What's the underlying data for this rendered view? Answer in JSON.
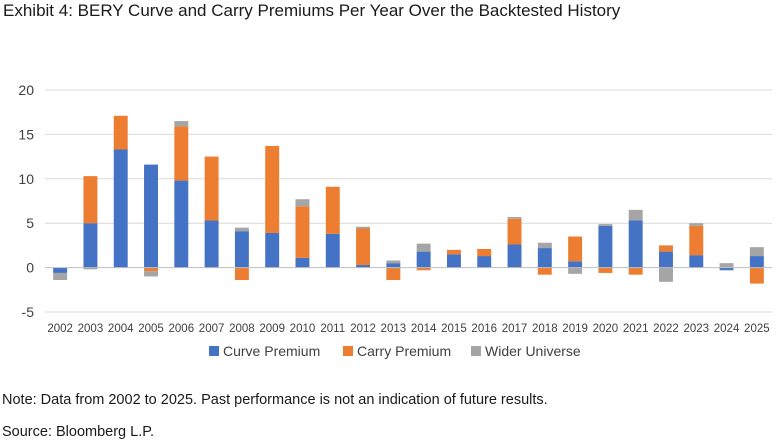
{
  "title": "Exhibit 4: BERY Curve and Carry Premiums Per Year Over the Backtested History",
  "note": "Note: Data from 2002 to 2025. Past performance is not an indication of future results.",
  "source": "Source: Bloomberg L.P.",
  "chart_data": {
    "type": "bar",
    "stacked": true,
    "categories": [
      "2002",
      "2003",
      "2004",
      "2005",
      "2006",
      "2007",
      "2008",
      "2009",
      "2010",
      "2011",
      "2012",
      "2013",
      "2014",
      "2015",
      "2016",
      "2017",
      "2018",
      "2019",
      "2020",
      "2021",
      "2022",
      "2023",
      "2024",
      "2025"
    ],
    "series": [
      {
        "name": "Curve Premium",
        "color": "#4472C4",
        "values": [
          -0.6,
          5.0,
          13.3,
          11.6,
          9.8,
          5.3,
          4.1,
          3.9,
          1.1,
          3.8,
          0.3,
          0.5,
          1.8,
          1.5,
          1.3,
          2.6,
          2.2,
          0.7,
          4.7,
          5.3,
          1.8,
          1.4,
          -0.3,
          1.3
        ]
      },
      {
        "name": "Carry Premium",
        "color": "#ED7D31",
        "values": [
          0,
          5.3,
          3.8,
          -0.4,
          6.1,
          7.2,
          -1.4,
          9.8,
          5.8,
          5.3,
          4.1,
          -1.4,
          -0.3,
          0.5,
          0.8,
          2.9,
          -0.8,
          2.8,
          -0.6,
          -0.8,
          0.7,
          3.3,
          0,
          -1.8
        ]
      },
      {
        "name": "Wider Universe",
        "color": "#A5A5A5",
        "values": [
          -0.8,
          -0.2,
          0,
          -0.6,
          0.6,
          0,
          0.4,
          0,
          0.8,
          0,
          0.2,
          0.3,
          0.9,
          0,
          0,
          0.2,
          0.6,
          -0.7,
          0.2,
          1.2,
          -1.6,
          0.3,
          0.5,
          1.0
        ]
      }
    ],
    "ylim": [
      -5,
      20
    ],
    "yticks": [
      -5,
      0,
      5,
      10,
      15,
      20
    ],
    "grid": true,
    "legend": "bottom",
    "xlabel": "",
    "ylabel": ""
  }
}
